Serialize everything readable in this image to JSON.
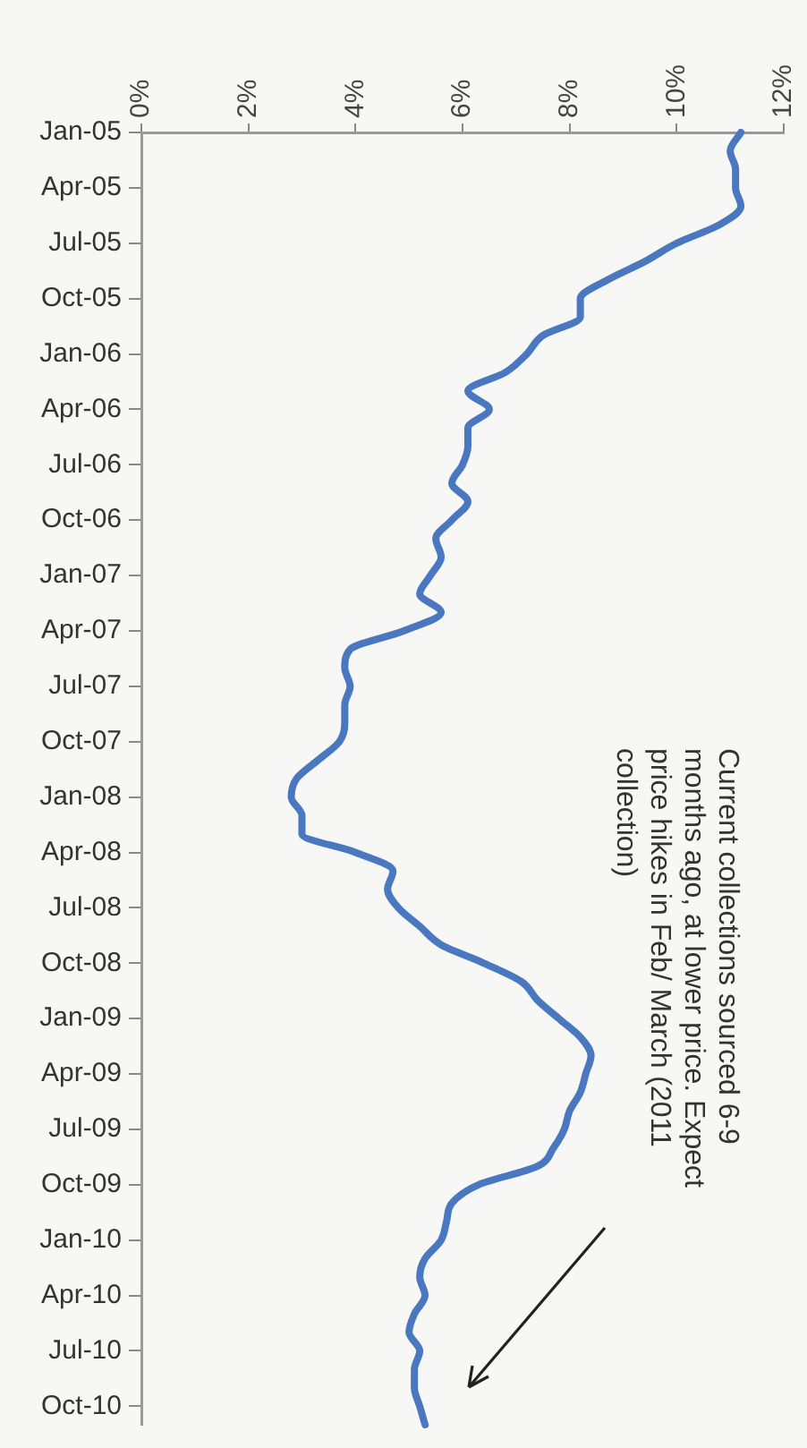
{
  "chart_data": {
    "type": "line",
    "orientation": "horizontal",
    "categories": [
      "Jan-05",
      null,
      null,
      "Apr-05",
      null,
      null,
      "Jul-05",
      null,
      null,
      "Oct-05",
      null,
      null,
      "Jan-06",
      null,
      null,
      "Apr-06",
      null,
      null,
      "Jul-06",
      null,
      null,
      "Oct-06",
      null,
      null,
      "Jan-07",
      null,
      null,
      "Apr-07",
      null,
      null,
      "Jul-07",
      null,
      null,
      "Oct-07",
      null,
      null,
      "Jan-08",
      null,
      null,
      "Apr-08",
      null,
      null,
      "Jul-08",
      null,
      null,
      "Oct-08",
      null,
      null,
      "Jan-09",
      null,
      null,
      "Apr-09",
      null,
      null,
      "Jul-09",
      null,
      null,
      "Oct-09",
      null,
      null,
      "Jan-10",
      null,
      null,
      "Apr-10",
      null,
      null,
      "Jul-10",
      null,
      null,
      "Oct-10",
      null
    ],
    "series": [
      {
        "color": "#4a78c0",
        "values": [
          11.2,
          11.0,
          11.1,
          11.1,
          11.2,
          10.8,
          10.0,
          9.4,
          8.7,
          8.2,
          8.2,
          7.5,
          7.2,
          6.8,
          6.1,
          6.5,
          6.1,
          6.1,
          6.0,
          5.8,
          6.1,
          5.8,
          5.5,
          5.6,
          5.4,
          5.2,
          5.6,
          4.9,
          3.9,
          3.8,
          3.9,
          3.8,
          3.8,
          3.7,
          3.3,
          2.9,
          2.8,
          3.0,
          3.0,
          4.0,
          4.7,
          4.6,
          4.8,
          5.2,
          5.6,
          6.4,
          7.1,
          7.4,
          7.8,
          8.2,
          8.4,
          8.3,
          8.2,
          8.0,
          7.9,
          7.7,
          7.4,
          6.3,
          5.8,
          5.7,
          5.6,
          5.3,
          5.2,
          5.3,
          5.1,
          5.0,
          5.2,
          5.1,
          5.1,
          5.2,
          5.3
        ]
      }
    ],
    "xlim": [
      0,
      12
    ],
    "xticks": [
      {
        "value": 0,
        "label": "0%"
      },
      {
        "value": 2,
        "label": "2%"
      },
      {
        "value": 4,
        "label": "4%"
      },
      {
        "value": 6,
        "label": "6%"
      },
      {
        "value": 8,
        "label": "8%"
      },
      {
        "value": 10,
        "label": "10%"
      },
      {
        "value": 12,
        "label": "12%"
      }
    ],
    "grid": false,
    "legend": false,
    "marker": "none",
    "line_style": "solid",
    "annotations": [
      "Current collections sourced 6-9 months ago, at lower price. Expect price hikes in Feb/ March (2011 collection)"
    ]
  }
}
